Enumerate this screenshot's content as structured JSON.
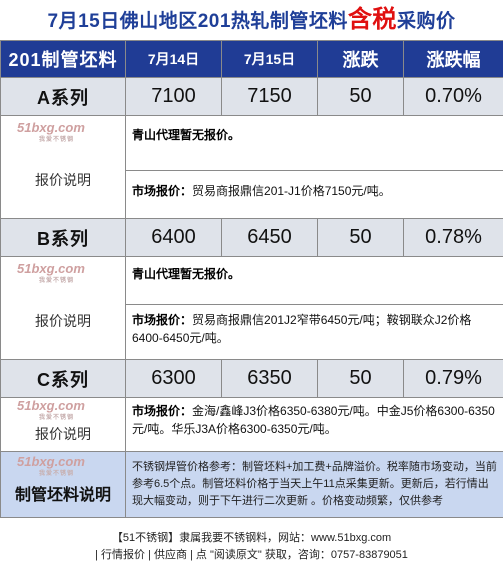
{
  "title": {
    "main": "7月15日佛山地区201热轧制管坯料",
    "highlight": "含税",
    "tail": "采购价"
  },
  "header": [
    "201制管坯料",
    "7月14日",
    "7月15日",
    "涨跌",
    "涨跌幅"
  ],
  "watermark": {
    "logo": "51bxg.com",
    "sub": "我爱不锈钢"
  },
  "rows": [
    {
      "name": "A系列",
      "p14": "7100",
      "p15": "7150",
      "chg": "50",
      "pct": "0.70%",
      "label": "报价说明",
      "s1_bold": "青山代理暂无报价。",
      "s1_text": "",
      "s2_bold": "市场报价：",
      "s2_text": "贸易商报鼎信201-J1价格7150元/吨。"
    },
    {
      "name": "B系列",
      "p14": "6400",
      "p15": "6450",
      "chg": "50",
      "pct": "0.78%",
      "label": "报价说明",
      "s1_bold": "青山代理暂无报价。",
      "s1_text": "",
      "s2_bold": "市场报价：",
      "s2_text": "贸易商报鼎信201J2窄带6450元/吨；鞍钢联众J2价格6400-6450元/吨。"
    },
    {
      "name": "C系列",
      "p14": "6300",
      "p15": "6350",
      "chg": "50",
      "pct": "0.79%",
      "label": "报价说明",
      "s2_bold": "市场报价：",
      "s2_text": "金海/鑫峰J3价格6350-6380元/吨。中金J5价格6300-6350元/吨。华乐J3A价格6300-6350元/吨。"
    }
  ],
  "explain": {
    "label": "制管坯料说明",
    "text": "不锈钢焊管价格参考：制管坯料+加工费+品牌溢价。税率随市场变动，当前参考6.5个点。制管坯料价格于当天上午11点采集更新。更新后，若行情出现大幅变动，则于下午进行二次更新 。价格变动频繁，仅供参考"
  },
  "footer": {
    "line1": "【51不锈钢】隶属我要不锈钢料，网站：www.51bxg.com",
    "line2": "| 行情报价 | 供应商 | 点 \"阅读原文\" 获取，咨询：0757-83879051"
  }
}
